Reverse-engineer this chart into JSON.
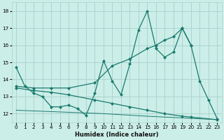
{
  "xlabel": "Humidex (Indice chaleur)",
  "background_color": "#cceee8",
  "grid_color": "#aad4ce",
  "line_color": "#1a7a6e",
  "xlim": [
    -0.5,
    23.5
  ],
  "ylim": [
    11.5,
    18.5
  ],
  "xticks": [
    0,
    1,
    2,
    3,
    4,
    5,
    6,
    7,
    8,
    9,
    10,
    11,
    12,
    13,
    14,
    15,
    16,
    17,
    18,
    19,
    20,
    21,
    22,
    23
  ],
  "yticks": [
    12,
    13,
    14,
    15,
    16,
    17,
    18
  ],
  "line1": [
    [
      0,
      14.7
    ],
    [
      1,
      13.6
    ],
    [
      2,
      13.2
    ],
    [
      3,
      13.0
    ],
    [
      4,
      12.4
    ],
    [
      5,
      12.4
    ],
    [
      6,
      12.5
    ],
    [
      7,
      12.3
    ],
    [
      8,
      11.9
    ],
    [
      9,
      13.2
    ],
    [
      10,
      15.1
    ],
    [
      11,
      13.9
    ],
    [
      12,
      13.1
    ],
    [
      13,
      14.9
    ],
    [
      14,
      16.9
    ],
    [
      15,
      18.0
    ],
    [
      16,
      15.8
    ],
    [
      17,
      15.3
    ],
    [
      18,
      15.6
    ],
    [
      19,
      17.0
    ],
    [
      20,
      16.0
    ],
    [
      21,
      13.9
    ],
    [
      22,
      12.8
    ],
    [
      23,
      11.7
    ]
  ],
  "line2": [
    [
      0,
      13.6
    ],
    [
      2,
      13.5
    ],
    [
      4,
      13.5
    ],
    [
      6,
      13.5
    ],
    [
      9,
      13.8
    ],
    [
      11,
      14.8
    ],
    [
      13,
      15.2
    ],
    [
      15,
      15.8
    ],
    [
      16,
      16.0
    ],
    [
      17,
      16.3
    ],
    [
      18,
      16.5
    ],
    [
      19,
      17.0
    ],
    [
      20,
      16.0
    ]
  ],
  "line3": [
    [
      0,
      13.5
    ],
    [
      2,
      13.35
    ],
    [
      4,
      13.25
    ],
    [
      6,
      13.1
    ],
    [
      9,
      12.8
    ],
    [
      11,
      12.6
    ],
    [
      13,
      12.4
    ],
    [
      15,
      12.2
    ],
    [
      17,
      12.0
    ],
    [
      19,
      11.85
    ],
    [
      20,
      11.8
    ],
    [
      23,
      11.65
    ]
  ],
  "line4": [
    [
      0,
      12.2
    ],
    [
      5,
      12.1
    ],
    [
      10,
      12.0
    ],
    [
      15,
      11.85
    ],
    [
      19,
      11.75
    ],
    [
      23,
      11.65
    ]
  ]
}
